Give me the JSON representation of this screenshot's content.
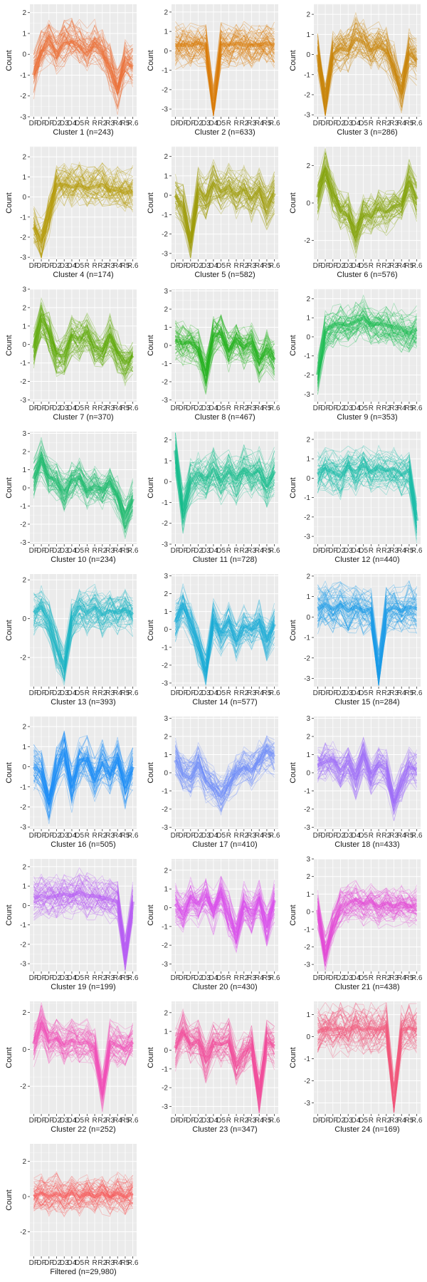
{
  "chart_data": [
    {
      "type": "line",
      "title": "Cluster 1 (n=243)",
      "ylabel": "Count",
      "color": "#EB6E33",
      "ylim": [
        -3,
        2.4
      ],
      "yticks": [
        -3,
        -2,
        -1,
        0,
        1,
        2
      ],
      "trend": [
        -1.0,
        0.1,
        0.6,
        0.0,
        0.5,
        0.6,
        0.4,
        0.0,
        0.5,
        0.1,
        -0.7,
        -1.8,
        -0.4,
        -0.6
      ]
    },
    {
      "type": "line",
      "title": "Cluster 2 (n=633)",
      "ylabel": "Count",
      "color": "#D97C0A",
      "ylim": [
        -3.4,
        2.4
      ],
      "yticks": [
        -3,
        -2,
        -1,
        0,
        1,
        2
      ],
      "trend": [
        0.3,
        0.3,
        0.3,
        0.4,
        0.3,
        -3.0,
        0.3,
        0.3,
        0.4,
        0.3,
        0.3,
        0.3,
        0.4,
        0.3
      ]
    },
    {
      "type": "line",
      "title": "Cluster 3 (n=286)",
      "ylabel": "Count",
      "color": "#C8850A",
      "ylim": [
        -3.1,
        2.5
      ],
      "yticks": [
        -3,
        -2,
        -1,
        0,
        1,
        2
      ],
      "trend": [
        0.0,
        -2.5,
        0.0,
        0.3,
        0.2,
        0.8,
        0.6,
        0.2,
        0.4,
        0.2,
        -0.6,
        -1.9,
        0.1,
        -0.3
      ]
    },
    {
      "type": "line",
      "title": "Cluster 4 (n=174)",
      "ylabel": "Count",
      "color": "#B49A0A",
      "ylim": [
        -3.1,
        2.5
      ],
      "yticks": [
        -3,
        -2,
        -1,
        0,
        1,
        2
      ],
      "trend": [
        -1.5,
        -2.2,
        -0.9,
        0.6,
        0.6,
        0.5,
        0.6,
        0.4,
        0.5,
        0.6,
        0.3,
        0.4,
        0.2,
        0.3
      ]
    },
    {
      "type": "line",
      "title": "Cluster 5 (n=582)",
      "ylabel": "Count",
      "color": "#9E9C0A",
      "ylim": [
        -3.3,
        2.5
      ],
      "yticks": [
        -3,
        -2,
        -1,
        0,
        1,
        2
      ],
      "trend": [
        0.0,
        -0.6,
        -2.4,
        0.3,
        -0.2,
        0.6,
        0.2,
        0.4,
        0.0,
        0.3,
        -0.2,
        0.3,
        -0.6,
        0.1
      ]
    },
    {
      "type": "line",
      "title": "Cluster 6 (n=576)",
      "ylabel": "Count",
      "color": "#83A309",
      "ylim": [
        -3.0,
        3.0
      ],
      "yticks": [
        -2,
        0,
        2
      ],
      "trend": [
        0.3,
        1.8,
        0.5,
        -0.4,
        -0.7,
        -1.8,
        -0.6,
        -0.7,
        -0.3,
        -0.5,
        -0.2,
        -0.1,
        1.1,
        0.2
      ]
    },
    {
      "type": "line",
      "title": "Cluster 7 (n=370)",
      "ylabel": "Count",
      "color": "#5FAA0A",
      "ylim": [
        -3.1,
        3.0
      ],
      "yticks": [
        -3,
        -2,
        -1,
        0,
        1,
        2,
        3
      ],
      "trend": [
        -0.2,
        1.5,
        0.7,
        -0.6,
        -0.6,
        0.5,
        0.3,
        0.7,
        -0.1,
        -0.3,
        0.5,
        -0.4,
        -1.0,
        -0.6
      ]
    },
    {
      "type": "line",
      "title": "Cluster 8 (n=467)",
      "ylabel": "Count",
      "color": "#22B11E",
      "ylim": [
        -3.1,
        3.1
      ],
      "yticks": [
        -3,
        -2,
        -1,
        0,
        1,
        2,
        3
      ],
      "trend": [
        0.3,
        0.1,
        0.2,
        -0.2,
        -1.6,
        0.5,
        0.7,
        -0.3,
        0.3,
        -0.1,
        0.2,
        -0.9,
        -0.2,
        -0.8
      ]
    },
    {
      "type": "line",
      "title": "Cluster 9 (n=353)",
      "ylabel": "Count",
      "color": "#1EBC52",
      "ylim": [
        -3.4,
        2.5
      ],
      "yticks": [
        -3,
        -2,
        -1,
        0,
        1,
        2
      ],
      "trend": [
        -2.0,
        0.3,
        0.6,
        0.7,
        0.6,
        0.8,
        1.0,
        0.6,
        0.7,
        0.6,
        0.5,
        0.4,
        0.2,
        0.4
      ]
    },
    {
      "type": "line",
      "title": "Cluster 10 (n=234)",
      "ylabel": "Count",
      "color": "#1DBA6E",
      "ylim": [
        -3.1,
        3.1
      ],
      "yticks": [
        -3,
        -2,
        -1,
        0,
        1,
        2,
        3
      ],
      "trend": [
        0.5,
        1.6,
        0.6,
        0.4,
        -0.3,
        0.4,
        0.6,
        -0.2,
        0.1,
        -0.2,
        0.3,
        -0.5,
        -1.6,
        -0.6
      ]
    },
    {
      "type": "line",
      "title": "Cluster 11 (n=728)",
      "ylabel": "Count",
      "color": "#18BC8D",
      "ylim": [
        -3.0,
        2.4
      ],
      "yticks": [
        -3,
        -2,
        -1,
        0,
        1,
        2
      ],
      "trend": [
        1.5,
        -1.5,
        0.0,
        0.4,
        0.1,
        0.6,
        0.0,
        0.5,
        0.1,
        0.6,
        0.3,
        0.6,
        -0.2,
        0.5
      ]
    },
    {
      "type": "line",
      "title": "Cluster 12 (n=440)",
      "ylabel": "Count",
      "color": "#19BCA8",
      "ylim": [
        -3.4,
        2.4
      ],
      "yticks": [
        -3,
        -2,
        -1,
        0,
        1,
        2
      ],
      "trend": [
        0.2,
        0.5,
        0.3,
        0.1,
        0.6,
        0.3,
        0.7,
        0.3,
        0.6,
        0.4,
        0.5,
        0.2,
        0.4,
        -2.2
      ]
    },
    {
      "type": "line",
      "title": "Cluster 13 (n=393)",
      "ylabel": "Count",
      "color": "#1BB4C4",
      "ylim": [
        -3.5,
        2.3
      ],
      "yticks": [
        -2,
        0,
        2
      ],
      "trend": [
        0.3,
        0.6,
        0.0,
        -1.5,
        -2.5,
        0.0,
        0.6,
        0.3,
        0.6,
        0.2,
        0.4,
        0.3,
        0.5,
        0.2
      ]
    },
    {
      "type": "line",
      "title": "Cluster 14 (n=577)",
      "ylabel": "Count",
      "color": "#1AABD6",
      "ylim": [
        -3.2,
        3.1
      ],
      "yticks": [
        -3,
        -2,
        -1,
        0,
        1,
        2,
        3
      ],
      "trend": [
        0.4,
        1.4,
        0.4,
        -0.8,
        -2.3,
        0.5,
        -0.3,
        0.5,
        -0.6,
        0.2,
        0.0,
        0.5,
        -0.6,
        0.3
      ]
    },
    {
      "type": "line",
      "title": "Cluster 15 (n=284)",
      "ylabel": "Count",
      "color": "#199BE8",
      "ylim": [
        -3.4,
        2.1
      ],
      "yticks": [
        -3,
        -2,
        -1,
        0,
        1,
        2
      ],
      "trend": [
        0.4,
        0.6,
        0.4,
        0.6,
        0.3,
        0.5,
        0.3,
        0.4,
        -2.8,
        0.3,
        0.5,
        0.3,
        0.5,
        0.4
      ]
    },
    {
      "type": "line",
      "title": "Cluster 16 (n=505)",
      "ylabel": "Count",
      "color": "#1A8CF5",
      "ylim": [
        -3.1,
        2.5
      ],
      "yticks": [
        -3,
        -2,
        -1,
        0,
        1,
        2
      ],
      "trend": [
        0.0,
        -0.3,
        -1.8,
        -0.1,
        0.8,
        -1.0,
        0.3,
        0.4,
        -0.6,
        0.2,
        -0.4,
        0.4,
        -1.0,
        0.0
      ]
    },
    {
      "type": "line",
      "title": "Cluster 17 (n=410)",
      "ylabel": "Count",
      "color": "#6E8BF8",
      "ylim": [
        -3.1,
        3.1
      ],
      "yticks": [
        -3,
        -2,
        -1,
        0,
        1,
        2,
        3
      ],
      "trend": [
        0.7,
        -0.1,
        -0.3,
        0.5,
        -0.5,
        -0.9,
        -1.3,
        -0.6,
        -0.1,
        0.3,
        0.1,
        0.7,
        1.2,
        0.9
      ]
    },
    {
      "type": "line",
      "title": "Cluster 18 (n=433)",
      "ylabel": "Count",
      "color": "#9E6EF8",
      "ylim": [
        -3.1,
        3.1
      ],
      "yticks": [
        -3,
        -2,
        -1,
        0,
        1,
        2,
        3
      ],
      "trend": [
        0.4,
        0.6,
        0.7,
        0.1,
        0.6,
        -0.3,
        1.0,
        -0.2,
        0.5,
        0.2,
        -1.6,
        -0.5,
        0.3,
        0.2
      ]
    },
    {
      "type": "line",
      "title": "Cluster 19 (n=199)",
      "ylabel": "Count",
      "color": "#B65CF4",
      "ylim": [
        -3.4,
        2.4
      ],
      "yticks": [
        -3,
        -2,
        -1,
        0,
        1,
        2
      ],
      "trend": [
        0.4,
        0.5,
        0.4,
        0.5,
        0.6,
        0.5,
        0.7,
        0.5,
        0.5,
        0.4,
        0.3,
        0.2,
        -2.6,
        0.2
      ]
    },
    {
      "type": "line",
      "title": "Cluster 20 (n=430)",
      "ylabel": "Count",
      "color": "#D94EEB",
      "ylim": [
        -3.4,
        2.6
      ],
      "yticks": [
        -3,
        -2,
        -1,
        0,
        1,
        2
      ],
      "trend": [
        0.2,
        -0.3,
        0.6,
        0.2,
        0.7,
        -0.2,
        0.8,
        -0.3,
        -1.4,
        0.3,
        -0.4,
        0.5,
        -1.0,
        0.4
      ]
    },
    {
      "type": "line",
      "title": "Cluster 21 (n=438)",
      "ylabel": "Count",
      "color": "#E34BD6",
      "ylim": [
        -3.4,
        3.0
      ],
      "yticks": [
        -3,
        -2,
        -1,
        0,
        1,
        2,
        3
      ],
      "trend": [
        0.1,
        -2.4,
        -0.8,
        0.3,
        0.5,
        0.7,
        0.4,
        0.6,
        0.3,
        0.5,
        0.3,
        0.5,
        0.3,
        0.4
      ]
    },
    {
      "type": "line",
      "title": "Cluster 22 (n=252)",
      "ylabel": "Count",
      "color": "#F050B8",
      "ylim": [
        -3.5,
        2.6
      ],
      "yticks": [
        -2,
        0,
        2
      ],
      "trend": [
        0.3,
        1.4,
        0.4,
        0.6,
        0.2,
        0.5,
        0.3,
        0.4,
        0.0,
        -2.4,
        0.4,
        0.2,
        0.0,
        0.4
      ]
    },
    {
      "type": "line",
      "title": "Cluster 23 (n=347)",
      "ylabel": "Count",
      "color": "#F24D9A",
      "ylim": [
        -3.4,
        2.6
      ],
      "yticks": [
        -3,
        -2,
        -1,
        0,
        1,
        2
      ],
      "trend": [
        0.1,
        1.0,
        0.3,
        0.5,
        -0.6,
        0.4,
        0.3,
        0.5,
        -0.8,
        -0.2,
        0.3,
        -2.5,
        0.5,
        0.2
      ]
    },
    {
      "type": "line",
      "title": "Cluster 24 (n=169)",
      "ylabel": "Count",
      "color": "#F2577A",
      "ylim": [
        -3.5,
        1.6
      ],
      "yticks": [
        -3,
        -2,
        -1,
        0,
        1
      ],
      "trend": [
        0.2,
        0.4,
        0.3,
        0.4,
        0.3,
        0.5,
        0.3,
        0.4,
        0.3,
        0.5,
        -2.9,
        0.3,
        0.4,
        0.3
      ]
    },
    {
      "type": "line",
      "title": "Filtered (n=29,980)",
      "ylabel": "Count",
      "color": "#F65B5B",
      "ylim": [
        -3.4,
        3.0
      ],
      "yticks": [
        -2,
        0,
        2
      ],
      "trend": [
        0.0,
        0.2,
        0.0,
        0.2,
        0.0,
        0.2,
        0.0,
        0.2,
        0.0,
        0.2,
        0.0,
        0.2,
        0.0,
        0.2
      ]
    }
  ],
  "x_tick_labels": [
    "DF",
    "DF",
    "DF",
    "D2",
    "D3",
    "D4",
    "D5",
    "R",
    "R",
    "R2",
    "R3",
    "R4",
    "R5",
    "R.6"
  ]
}
